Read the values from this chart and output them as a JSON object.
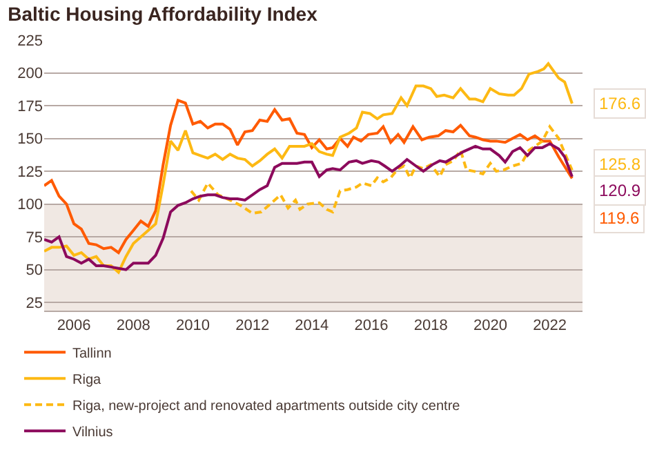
{
  "chart_data": {
    "type": "line",
    "title": "Baltic Housing Affordability Index",
    "xlim": [
      2005,
      2023.1
    ],
    "xticks": [
      2006,
      2008,
      2010,
      2012,
      2014,
      2016,
      2018,
      2020,
      2022
    ],
    "ylim": [
      18.8,
      225
    ],
    "yticks": [
      25,
      50,
      75,
      100,
      125,
      150,
      175,
      200,
      225
    ],
    "grid": "y",
    "legend": "bottom",
    "marker": "none",
    "bands": [
      {
        "axis": "y",
        "from": 18.8,
        "to": 100,
        "color": "#f0e8e3"
      }
    ],
    "series": [
      {
        "name": "Tallinn",
        "color": "#ff5a00",
        "line_style": "solid",
        "x": [
          2005.0,
          2005.25,
          2005.5,
          2005.75,
          2006.0,
          2006.25,
          2006.5,
          2006.75,
          2007.0,
          2007.25,
          2007.5,
          2007.75,
          2008.0,
          2008.25,
          2008.5,
          2008.75,
          2009.0,
          2009.25,
          2009.5,
          2009.75,
          2010.0,
          2010.25,
          2010.5,
          2010.75,
          2011.0,
          2011.25,
          2011.5,
          2011.75,
          2012.0,
          2012.25,
          2012.5,
          2012.75,
          2013.0,
          2013.25,
          2013.5,
          2013.75,
          2014.0,
          2014.25,
          2014.5,
          2014.7,
          2014.95,
          2015.2,
          2015.4,
          2015.65,
          2015.9,
          2016.2,
          2016.4,
          2016.65,
          2016.9,
          2017.1,
          2017.4,
          2017.7,
          2017.95,
          2018.25,
          2018.5,
          2018.75,
          2019.0,
          2019.3,
          2019.5,
          2019.75,
          2020.0,
          2020.2,
          2020.5,
          2020.75,
          2021.0,
          2021.25,
          2021.5,
          2021.75,
          2022.0,
          2022.3,
          2022.75
        ],
        "values": [
          114,
          118,
          106,
          100,
          85,
          81,
          70,
          69,
          66,
          67,
          63,
          73,
          80,
          87,
          83,
          95,
          130,
          160,
          179,
          177,
          161,
          163,
          158,
          161,
          161,
          157,
          145,
          155,
          156,
          164,
          163,
          172,
          164,
          165,
          154,
          153,
          143,
          149,
          142,
          143,
          150,
          144,
          151,
          148,
          153,
          154,
          159,
          147,
          153,
          147,
          159,
          149,
          151,
          152,
          156,
          155,
          160,
          152,
          151,
          149,
          148,
          148,
          147,
          150,
          153,
          149,
          152,
          148,
          148,
          136,
          119.6
        ],
        "value_labels": [
          null,
          null,
          null,
          null,
          null,
          null,
          null,
          null,
          null,
          null,
          null,
          null,
          null,
          null,
          null,
          null,
          null,
          null,
          null,
          null,
          null,
          null,
          null,
          null,
          null,
          null,
          null,
          null,
          null,
          null,
          null,
          null,
          null,
          null,
          null,
          null,
          null,
          null,
          null,
          null,
          null,
          null,
          null,
          null,
          null,
          null,
          null,
          null,
          null,
          null,
          null,
          null,
          null,
          null,
          null,
          null,
          null,
          null,
          null,
          null,
          null,
          null,
          null,
          null,
          null,
          null,
          null,
          null,
          null,
          null,
          "119.6"
        ]
      },
      {
        "name": "Riga",
        "color": "#fdb913",
        "line_style": "solid",
        "x": [
          2005.0,
          2005.25,
          2005.5,
          2005.75,
          2006.0,
          2006.25,
          2006.5,
          2006.75,
          2007.0,
          2007.25,
          2007.5,
          2007.75,
          2008.0,
          2008.25,
          2008.5,
          2008.75,
          2009.0,
          2009.25,
          2009.5,
          2009.75,
          2010.0,
          2010.25,
          2010.5,
          2010.75,
          2011.0,
          2011.25,
          2011.5,
          2011.75,
          2012.0,
          2012.25,
          2012.5,
          2012.75,
          2013.0,
          2013.25,
          2013.5,
          2013.75,
          2014.0,
          2014.25,
          2014.5,
          2014.7,
          2014.95,
          2015.25,
          2015.5,
          2015.7,
          2015.95,
          2016.2,
          2016.4,
          2016.7,
          2017.0,
          2017.2,
          2017.5,
          2017.75,
          2018.0,
          2018.2,
          2018.45,
          2018.75,
          2019.0,
          2019.3,
          2019.5,
          2019.75,
          2020.0,
          2020.3,
          2020.6,
          2020.8,
          2021.05,
          2021.3,
          2021.6,
          2021.8,
          2021.95,
          2022.3,
          2022.5,
          2022.75
        ],
        "values": [
          64,
          67,
          67,
          68,
          61,
          63,
          58,
          60,
          53,
          53,
          48,
          60,
          70,
          75,
          80,
          85,
          115,
          148,
          141,
          156,
          139,
          137,
          135,
          138,
          134,
          138,
          135,
          134,
          129,
          133,
          138,
          142,
          135,
          144,
          144,
          144,
          146,
          140,
          138,
          137,
          151,
          154,
          158,
          170,
          169,
          165,
          168,
          169,
          181,
          175,
          190,
          190,
          188,
          182,
          183,
          181,
          188,
          180,
          180,
          178,
          188,
          184,
          183,
          183,
          188,
          199,
          201,
          203,
          207,
          196,
          193,
          176.6
        ],
        "value_labels": [
          null,
          null,
          null,
          null,
          null,
          null,
          null,
          null,
          null,
          null,
          null,
          null,
          null,
          null,
          null,
          null,
          null,
          null,
          null,
          null,
          null,
          null,
          null,
          null,
          null,
          null,
          null,
          null,
          null,
          null,
          null,
          null,
          null,
          null,
          null,
          null,
          null,
          null,
          null,
          null,
          null,
          null,
          null,
          null,
          null,
          null,
          null,
          null,
          null,
          null,
          null,
          null,
          null,
          null,
          null,
          null,
          null,
          null,
          null,
          null,
          null,
          null,
          null,
          null,
          null,
          null,
          null,
          null,
          null,
          null,
          null,
          "176.6"
        ]
      },
      {
        "name": "Riga, new-project and renovated apartments outside city centre",
        "color": "#fdb913",
        "line_style": "dashed",
        "x": [
          2009.94,
          2010.2,
          2010.5,
          2010.85,
          2011.25,
          2011.6,
          2012.0,
          2012.3,
          2012.6,
          2012.95,
          2013.2,
          2013.45,
          2013.6,
          2013.85,
          2014.25,
          2014.5,
          2014.7,
          2014.95,
          2015.2,
          2015.5,
          2015.7,
          2016.0,
          2016.2,
          2016.4,
          2016.65,
          2016.9,
          2017.1,
          2017.3,
          2017.5,
          2017.75,
          2018.0,
          2018.3,
          2018.5,
          2018.75,
          2019.0,
          2019.2,
          2019.45,
          2019.75,
          2020.0,
          2020.2,
          2020.45,
          2020.75,
          2021.05,
          2021.3,
          2021.5,
          2021.75,
          2022.0,
          2022.3,
          2022.5,
          2022.75
        ],
        "values": [
          110,
          103,
          116,
          107,
          103,
          99,
          93,
          94,
          100,
          107,
          97,
          103,
          96,
          100,
          101,
          96,
          94,
          110,
          111,
          113,
          116,
          114,
          120,
          117,
          120,
          127,
          129,
          120,
          129,
          127,
          130,
          121,
          130,
          133,
          141,
          126,
          125,
          123,
          131,
          125,
          126,
          129,
          131,
          141,
          144,
          148,
          159,
          150,
          139,
          125.8
        ],
        "value_labels": [
          null,
          null,
          null,
          null,
          null,
          null,
          null,
          null,
          null,
          null,
          null,
          null,
          null,
          null,
          null,
          null,
          null,
          null,
          null,
          null,
          null,
          null,
          null,
          null,
          null,
          null,
          null,
          null,
          null,
          null,
          null,
          null,
          null,
          null,
          null,
          null,
          null,
          null,
          null,
          null,
          null,
          null,
          null,
          null,
          null,
          null,
          null,
          null,
          null,
          "125.8"
        ]
      },
      {
        "name": "Vilnius",
        "color": "#8c0a5c",
        "line_style": "solid",
        "x": [
          2005.0,
          2005.25,
          2005.5,
          2005.75,
          2006.0,
          2006.25,
          2006.5,
          2006.75,
          2007.0,
          2007.25,
          2007.5,
          2007.75,
          2008.0,
          2008.25,
          2008.5,
          2008.75,
          2009.0,
          2009.25,
          2009.5,
          2009.75,
          2010.0,
          2010.25,
          2010.5,
          2010.75,
          2011.0,
          2011.25,
          2011.5,
          2011.75,
          2012.0,
          2012.25,
          2012.5,
          2012.75,
          2013.0,
          2013.25,
          2013.5,
          2013.75,
          2014.0,
          2014.25,
          2014.5,
          2014.7,
          2014.95,
          2015.25,
          2015.5,
          2015.7,
          2016.0,
          2016.25,
          2016.45,
          2016.7,
          2016.95,
          2017.2,
          2017.5,
          2017.75,
          2018.05,
          2018.3,
          2018.5,
          2018.8,
          2019.1,
          2019.5,
          2019.75,
          2020.0,
          2020.3,
          2020.5,
          2020.75,
          2021.0,
          2021.25,
          2021.5,
          2021.75,
          2022.0,
          2022.3,
          2022.5,
          2022.75
        ],
        "values": [
          73,
          71,
          75,
          60,
          58,
          55,
          58,
          53,
          53,
          52,
          51,
          50,
          55,
          55,
          55,
          61,
          74,
          94,
          99,
          101,
          104,
          106,
          107,
          107,
          105,
          104,
          104,
          103,
          107,
          111,
          114,
          128,
          131,
          131,
          131,
          132,
          132,
          121,
          126,
          127,
          126,
          132,
          133,
          131,
          133,
          132,
          129,
          125,
          129,
          134,
          129,
          125,
          130,
          133,
          132,
          136,
          140,
          144,
          142,
          142,
          137,
          132,
          140,
          143,
          137,
          143,
          143,
          146,
          142,
          136,
          120.9
        ],
        "value_labels": [
          null,
          null,
          null,
          null,
          null,
          null,
          null,
          null,
          null,
          null,
          null,
          null,
          null,
          null,
          null,
          null,
          null,
          null,
          null,
          null,
          null,
          null,
          null,
          null,
          null,
          null,
          null,
          null,
          null,
          null,
          null,
          null,
          null,
          null,
          null,
          null,
          null,
          null,
          null,
          null,
          null,
          null,
          null,
          null,
          null,
          null,
          null,
          null,
          null,
          null,
          null,
          null,
          null,
          null,
          null,
          null,
          null,
          null,
          null,
          null,
          null,
          null,
          null,
          null,
          null,
          null,
          null,
          null,
          null,
          null,
          "120.9"
        ]
      }
    ]
  }
}
